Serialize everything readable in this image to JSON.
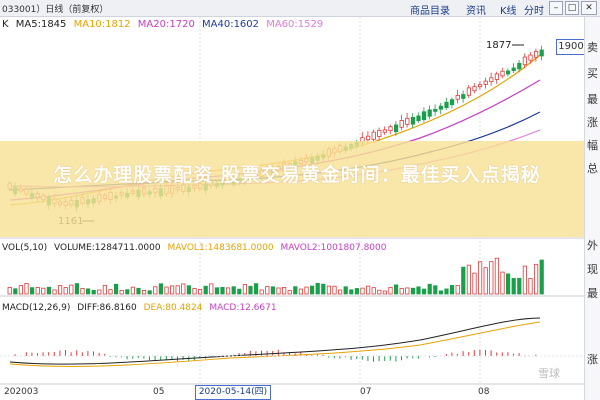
{
  "topbar": {
    "code": "033001）日线（前复权）",
    "tabs": [
      "商品目录",
      "资讯",
      "K线",
      "分时"
    ],
    "icons": [
      "refresh-icon",
      "minimize-icon",
      "maximize-icon",
      "close-icon"
    ]
  },
  "chart_price": {
    "type": "candlestick",
    "title": "K",
    "ma": [
      {
        "name": "MA5:1845",
        "color": "#222222"
      },
      {
        "name": "MA10:1812",
        "color": "#e8a200"
      },
      {
        "name": "MA20:1720",
        "color": "#c83cc8"
      },
      {
        "name": "MA40:1602",
        "color": "#1c3a9a"
      },
      {
        "name": "MA60:1529",
        "color": "#e07ad8"
      }
    ],
    "high_label": "1877",
    "low_label": "1161",
    "current_price": "1900"
  },
  "chart_volume": {
    "type": "bar",
    "label": "VOL(5,10)",
    "vol": "VOLUME:1284711.0000",
    "mavol1": "MAVOL1:1483681.0000",
    "mavol2": "MAVOL2:1001807.8000"
  },
  "chart_macd": {
    "type": "line",
    "label": "MACD(12,26,9)",
    "diff": "DIFF:86.8160",
    "dea": "DEA:80.4824",
    "macd": "MACD:12.6671"
  },
  "axis": {
    "labels": [
      "202003",
      "05",
      "07",
      "08"
    ],
    "selected_date": "2020-05-14(四)"
  },
  "sidebar": {
    "chars": [
      "卖",
      "买",
      "最",
      "涨",
      "幅",
      "总",
      "外",
      "现",
      "最",
      "涨"
    ]
  },
  "banner": {
    "text": "怎么办理股票配资 股票交易黄金时间：最佳买入点揭秘"
  },
  "watermark": "雪球",
  "colors": {
    "up": "#e23a3a",
    "down": "#1aa04a",
    "banner": "#f6d98a",
    "ma10": "#e8a200",
    "ma20": "#c83cc8",
    "ma40": "#1c3a9a"
  }
}
